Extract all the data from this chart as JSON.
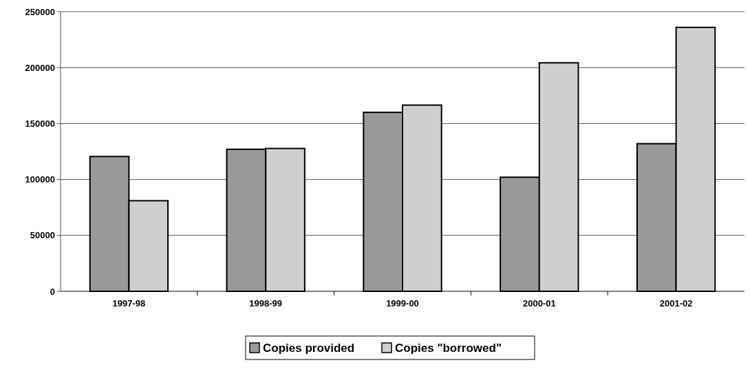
{
  "chart_data": {
    "type": "bar",
    "categories": [
      "1997-98",
      "1998-99",
      "1999-00",
      "2000-01",
      "2001-02"
    ],
    "series": [
      {
        "name": "Copies provided",
        "color": "#999999",
        "values": [
          120500,
          127000,
          160000,
          102000,
          132000
        ]
      },
      {
        "name": "Copies \"borrowed\"",
        "color": "#cfcfcf",
        "values": [
          81000,
          127700,
          166500,
          204300,
          236000
        ]
      }
    ],
    "ylim": [
      0,
      250000
    ],
    "yticks": [
      0,
      50000,
      100000,
      150000,
      200000,
      250000
    ],
    "grid": "y",
    "legend": "bottom"
  }
}
